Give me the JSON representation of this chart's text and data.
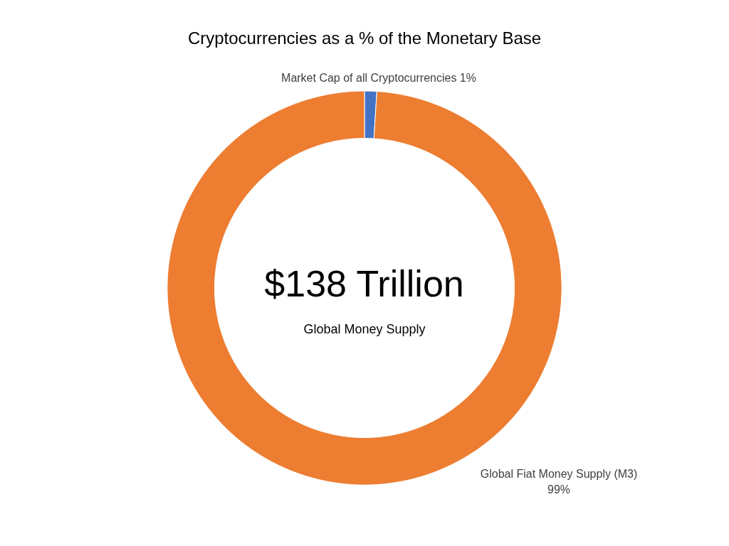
{
  "chart_data": {
    "type": "donut",
    "title": "Cryptocurrencies as a % of the Monetary Base",
    "categories": [
      "Market Cap of all Cryptocurrencies",
      "Global Fiat Money Supply (M3)"
    ],
    "values": [
      1,
      99
    ],
    "colors": [
      "#4472c4",
      "#ed7d31"
    ],
    "value_labels": [
      "1%",
      "99%"
    ],
    "annotations": [
      "$138 Trillion",
      "Global Money Supply"
    ],
    "legend": false
  }
}
